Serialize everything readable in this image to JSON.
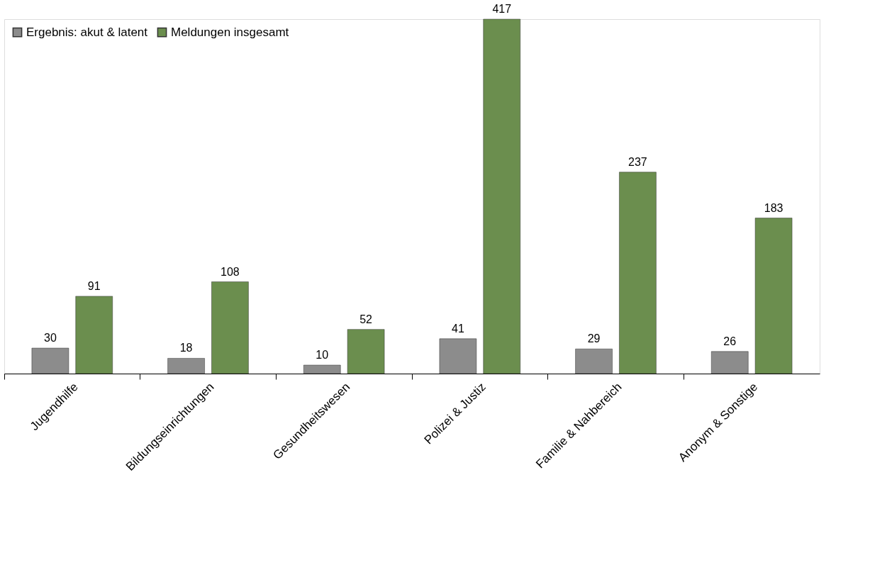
{
  "chart_data": {
    "type": "bar",
    "categories": [
      "Jugendhilfe",
      "Bildungseinrichtungen",
      "Gesundheitswesen",
      "Polizei & Justiz",
      "Familie & Nahbereich",
      "Anonym & Sonstige"
    ],
    "series": [
      {
        "name": "Ergebnis: akut & latent",
        "color": "#8c8c8c",
        "values": [
          30,
          18,
          10,
          41,
          29,
          26
        ]
      },
      {
        "name": "Meldungen insgesamt",
        "color": "#6b8e4e",
        "values": [
          91,
          108,
          52,
          417,
          237,
          183
        ]
      }
    ],
    "data_labels": true,
    "legend": "top left",
    "grid": false
  }
}
